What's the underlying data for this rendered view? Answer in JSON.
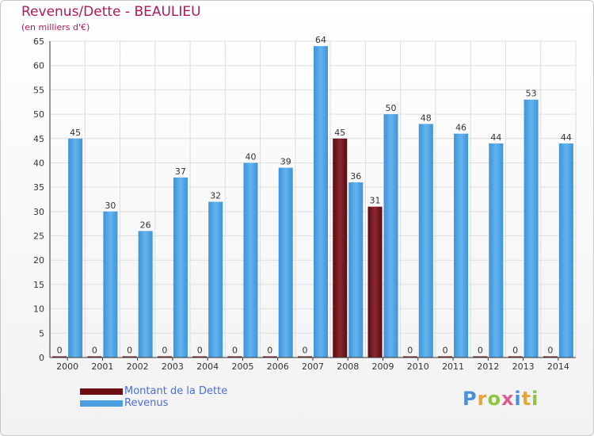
{
  "title": "Revenus/Dette - BEAULIEU",
  "subtitle": "(en milliers d'€)",
  "logo": {
    "text": "Proxiti",
    "letter_colors": [
      "#4a90d9",
      "#e8a43a",
      "#8cc63f",
      "#e05b8d",
      "#4a90d9",
      "#e8a43a",
      "#8cc63f"
    ]
  },
  "chart_data": {
    "type": "bar",
    "categories": [
      "2000",
      "2001",
      "2002",
      "2003",
      "2004",
      "2005",
      "2006",
      "2007",
      "2008",
      "2009",
      "2010",
      "2011",
      "2012",
      "2013",
      "2014"
    ],
    "series": [
      {
        "name": "Montant de la Dette",
        "color": "#6b0f14",
        "values": [
          0,
          0,
          0,
          0,
          0,
          0,
          0,
          0,
          45,
          31,
          0,
          0,
          0,
          0,
          0
        ]
      },
      {
        "name": "Revenus",
        "color": "#4aa0e0",
        "values": [
          45,
          30,
          26,
          37,
          32,
          40,
          39,
          64,
          36,
          50,
          48,
          46,
          44,
          53,
          44
        ]
      }
    ],
    "yticks": [
      0,
      5,
      10,
      15,
      20,
      25,
      30,
      35,
      40,
      45,
      50,
      55,
      60,
      65
    ],
    "ylim": [
      0,
      65
    ],
    "grid": true,
    "legend_position": "bottom-left"
  }
}
